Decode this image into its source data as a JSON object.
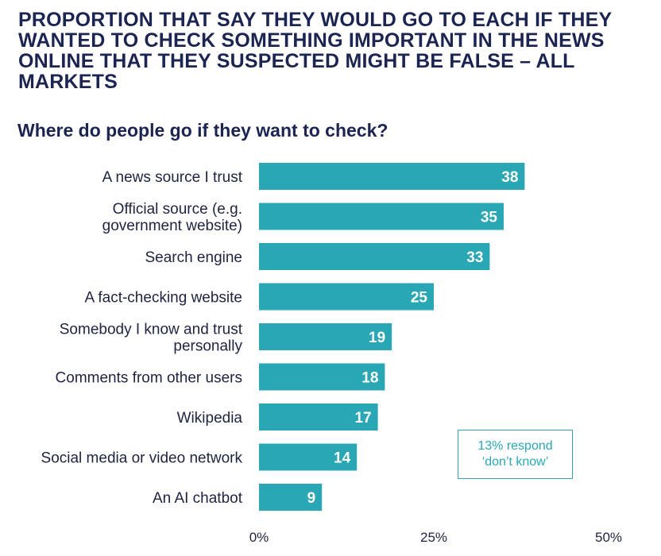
{
  "title": "PROPORTION THAT SAY THEY WOULD GO TO EACH IF THEY WANTED TO CHECK SOMETHING IMPORTANT IN THE NEWS ONLINE THAT THEY SUSPECTED MIGHT BE FALSE – ALL MARKETS",
  "subtitle": "Where do people go if they want to check?",
  "note": {
    "line1": "13% respond",
    "line2": "‘don’t know’"
  },
  "colors": {
    "bar": "#2aa7b4",
    "title": "#1c2452",
    "text": "#1f2340"
  },
  "chart_data": {
    "type": "bar",
    "orientation": "horizontal",
    "title": "PROPORTION THAT SAY THEY WOULD GO TO EACH IF THEY WANTED TO CHECK SOMETHING IMPORTANT IN THE NEWS ONLINE THAT THEY SUSPECTED MIGHT BE FALSE – ALL MARKETS",
    "subtitle": "Where do people go if they want to check?",
    "xlabel": "",
    "ylabel": "",
    "categories": [
      [
        "A news source I trust"
      ],
      [
        "Official source (e.g.",
        "government website)"
      ],
      [
        "Search engine"
      ],
      [
        "A fact-checking website"
      ],
      [
        "Somebody I know and trust",
        "personally"
      ],
      [
        "Comments from other users"
      ],
      [
        "Wikipedia"
      ],
      [
        "Social media or video network"
      ],
      [
        "An AI chatbot"
      ]
    ],
    "values": [
      38,
      35,
      33,
      25,
      19,
      18,
      17,
      14,
      9
    ],
    "xlim": [
      0,
      50
    ],
    "ticks": [
      0,
      25,
      50
    ],
    "tick_labels": [
      "0%",
      "25%",
      "50%"
    ],
    "grid": false,
    "legend": "none",
    "annotation": "13% respond ‘don’t know’"
  }
}
